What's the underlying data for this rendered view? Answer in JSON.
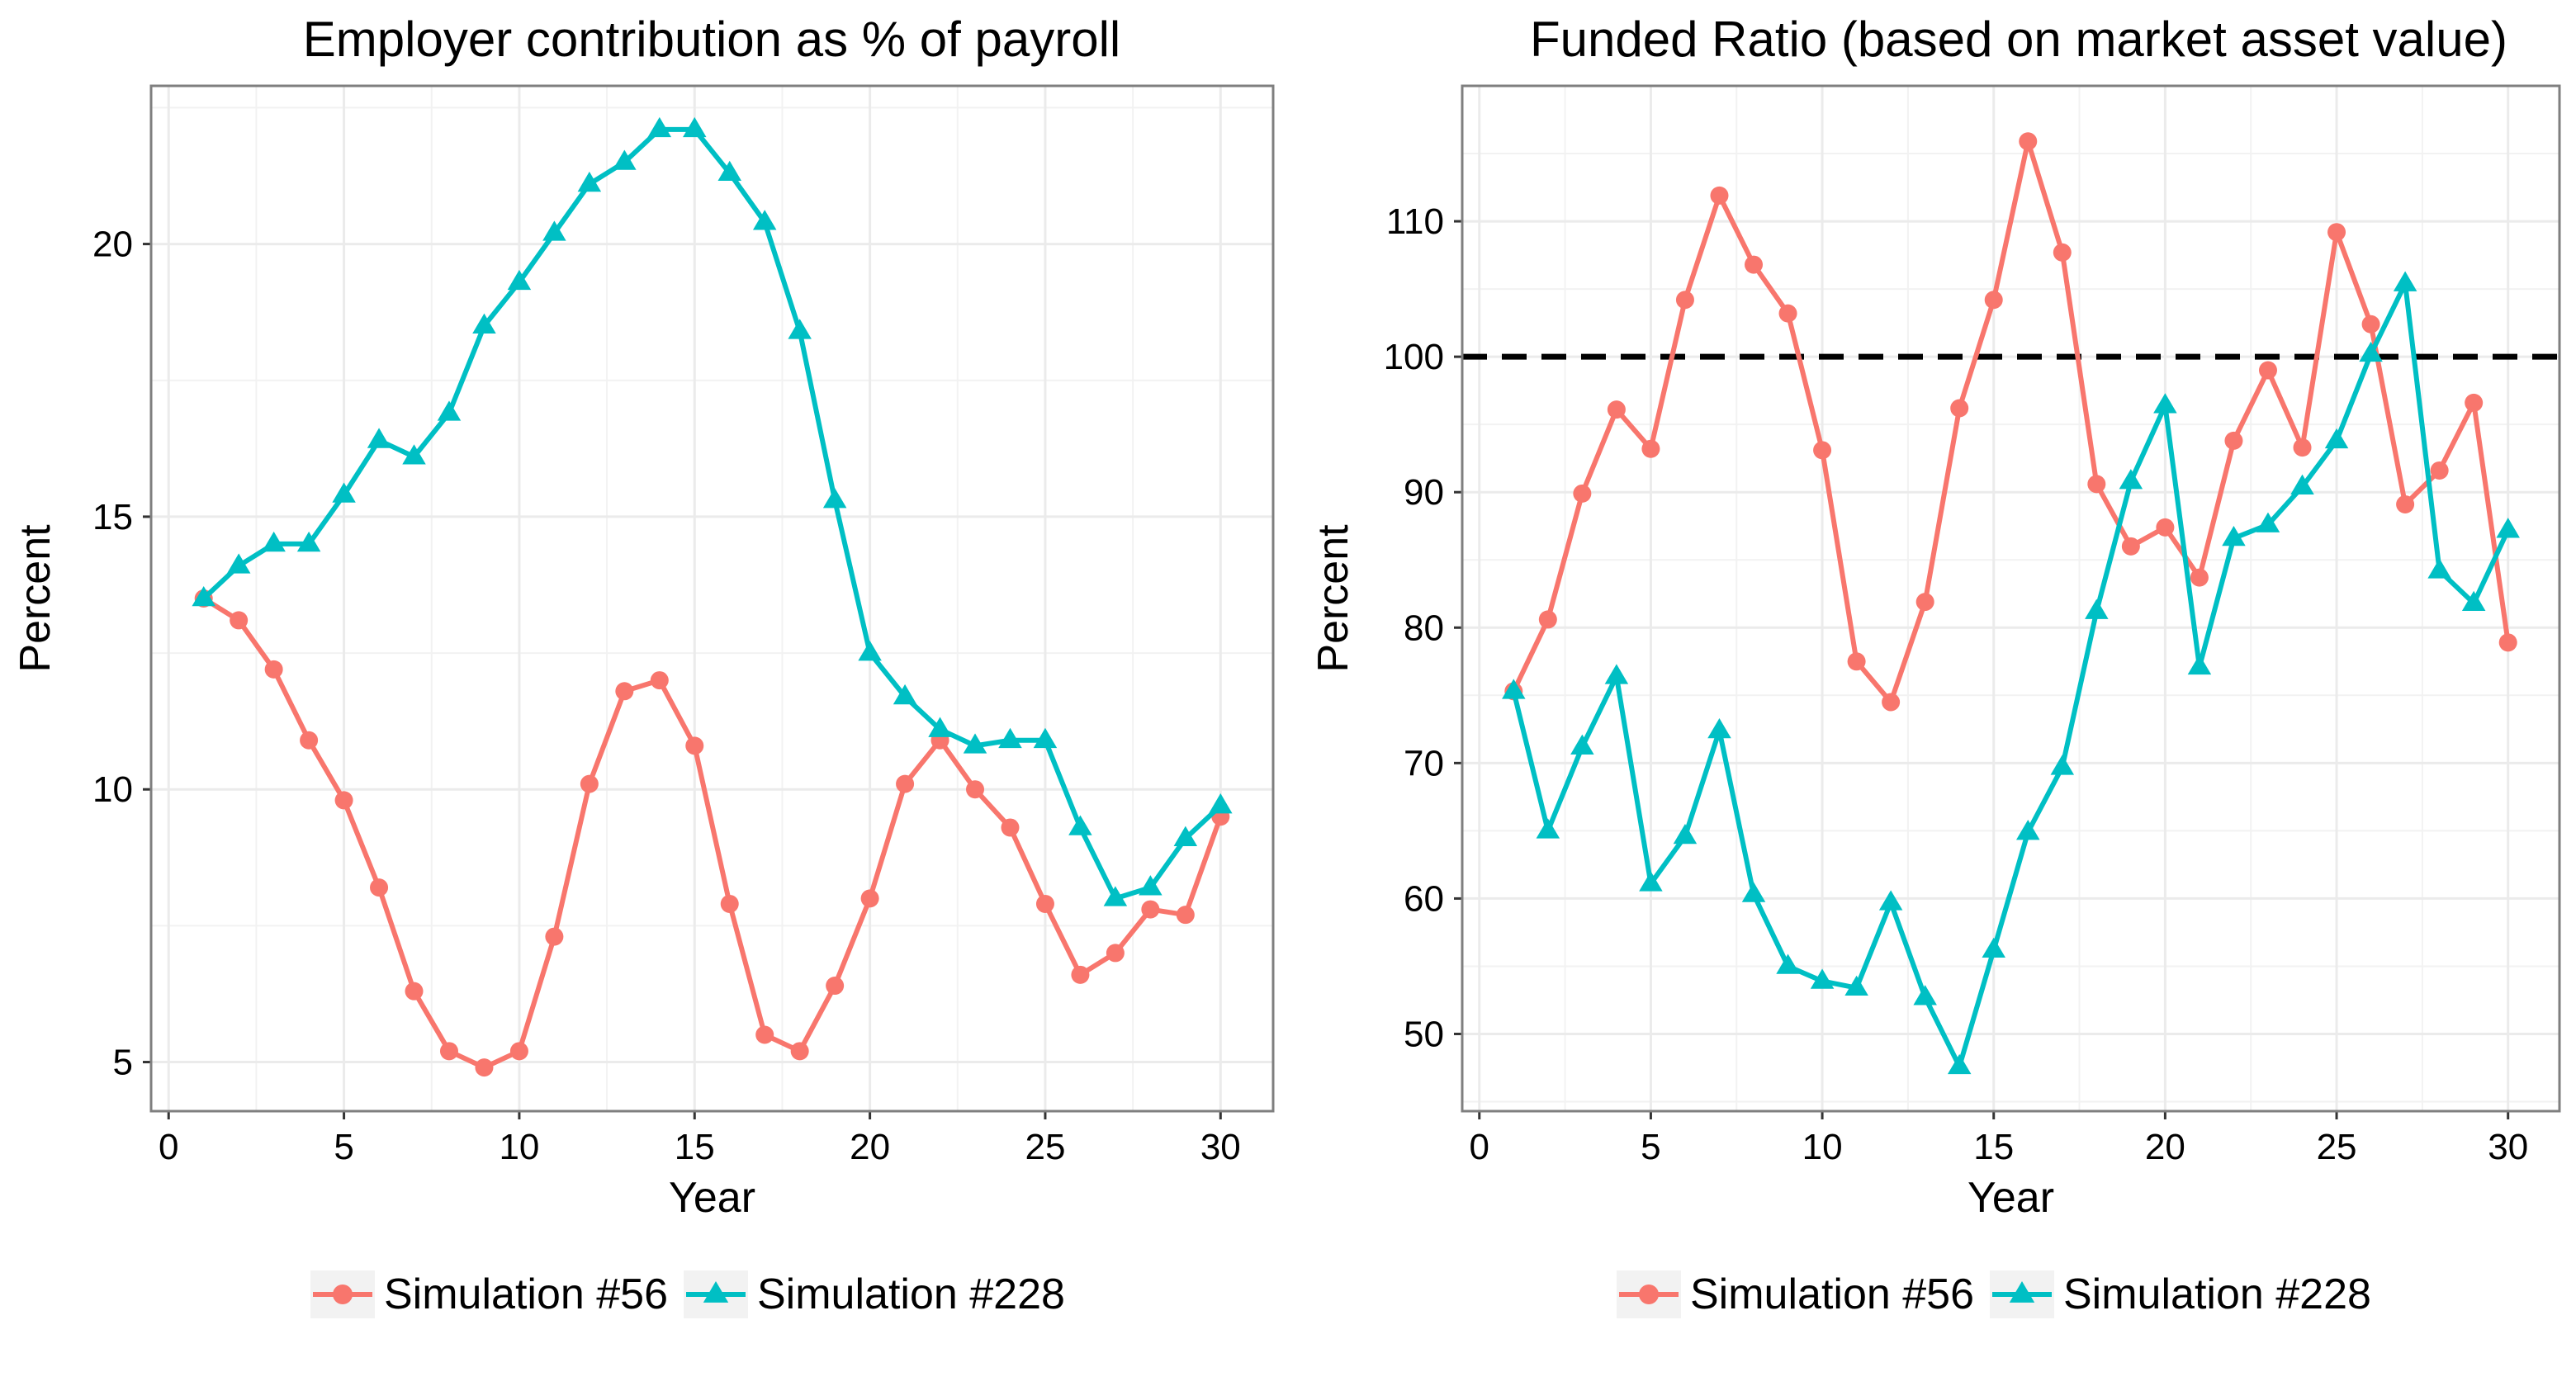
{
  "chart_data": [
    {
      "type": "line",
      "title": "Employer contribution as % of payroll",
      "xlabel": "Year",
      "ylabel": "Percent",
      "xlim": [
        -0.5,
        31.5
      ],
      "ylim": [
        4.1,
        22.9
      ],
      "xticks": [
        0,
        5,
        10,
        15,
        20,
        25,
        30
      ],
      "yticks": [
        5,
        10,
        15,
        20
      ],
      "grid": true,
      "legend_position": "bottom",
      "x": [
        1,
        2,
        3,
        4,
        5,
        6,
        7,
        8,
        9,
        10,
        11,
        12,
        13,
        14,
        15,
        16,
        17,
        18,
        19,
        20,
        21,
        22,
        23,
        24,
        25,
        26,
        27,
        28,
        29,
        30
      ],
      "series": [
        {
          "name": "Simulation #56",
          "color": "#F8766D",
          "marker": "circle",
          "values": [
            13.5,
            13.1,
            12.2,
            10.9,
            9.8,
            8.2,
            6.3,
            5.2,
            4.9,
            5.2,
            7.3,
            10.1,
            11.8,
            12.0,
            10.8,
            7.9,
            5.5,
            5.2,
            6.4,
            8.0,
            10.1,
            10.9,
            10.0,
            9.3,
            7.9,
            6.6,
            7.0,
            7.8,
            7.7,
            9.5
          ]
        },
        {
          "name": "Simulation #228",
          "color": "#00BFC4",
          "marker": "triangle",
          "values": [
            13.5,
            14.1,
            14.5,
            14.5,
            15.4,
            16.4,
            16.1,
            16.9,
            18.5,
            19.3,
            20.2,
            21.1,
            21.5,
            22.1,
            22.1,
            21.3,
            20.4,
            18.4,
            15.3,
            12.5,
            11.7,
            11.1,
            10.8,
            10.9,
            10.9,
            9.3,
            8.0,
            8.2,
            9.1,
            9.7
          ]
        }
      ]
    },
    {
      "type": "line",
      "title": "Funded Ratio (based on market asset value)",
      "xlabel": "Year",
      "ylabel": "Percent",
      "xlim": [
        -0.5,
        31.5
      ],
      "ylim": [
        44.3,
        120
      ],
      "xticks": [
        0,
        5,
        10,
        15,
        20,
        25,
        30
      ],
      "yticks": [
        50,
        60,
        70,
        80,
        90,
        100,
        110
      ],
      "grid": true,
      "legend_position": "bottom",
      "reference_line": {
        "y": 100,
        "style": "dashed",
        "color": "#000000"
      },
      "x": [
        1,
        2,
        3,
        4,
        5,
        6,
        7,
        8,
        9,
        10,
        11,
        12,
        13,
        14,
        15,
        16,
        17,
        18,
        19,
        20,
        21,
        22,
        23,
        24,
        25,
        26,
        27,
        28,
        29,
        30
      ],
      "series": [
        {
          "name": "Simulation #56",
          "color": "#F8766D",
          "marker": "circle",
          "values": [
            75.3,
            80.6,
            89.9,
            96.1,
            93.2,
            104.2,
            111.9,
            106.8,
            103.2,
            93.1,
            77.5,
            74.5,
            81.9,
            96.2,
            104.2,
            115.9,
            107.7,
            90.6,
            86.0,
            87.4,
            83.7,
            93.8,
            99.0,
            93.3,
            109.2,
            102.4,
            89.1,
            91.6,
            96.6,
            78.9
          ]
        },
        {
          "name": "Simulation #228",
          "color": "#00BFC4",
          "marker": "triangle",
          "values": [
            75.3,
            65.0,
            71.2,
            76.4,
            61.1,
            64.6,
            72.4,
            60.3,
            55.0,
            53.9,
            53.4,
            59.7,
            52.7,
            47.6,
            56.2,
            64.9,
            69.7,
            81.2,
            90.8,
            96.4,
            77.1,
            86.6,
            87.6,
            90.4,
            93.8,
            100.2,
            105.4,
            84.2,
            81.8,
            87.2
          ]
        }
      ]
    }
  ]
}
